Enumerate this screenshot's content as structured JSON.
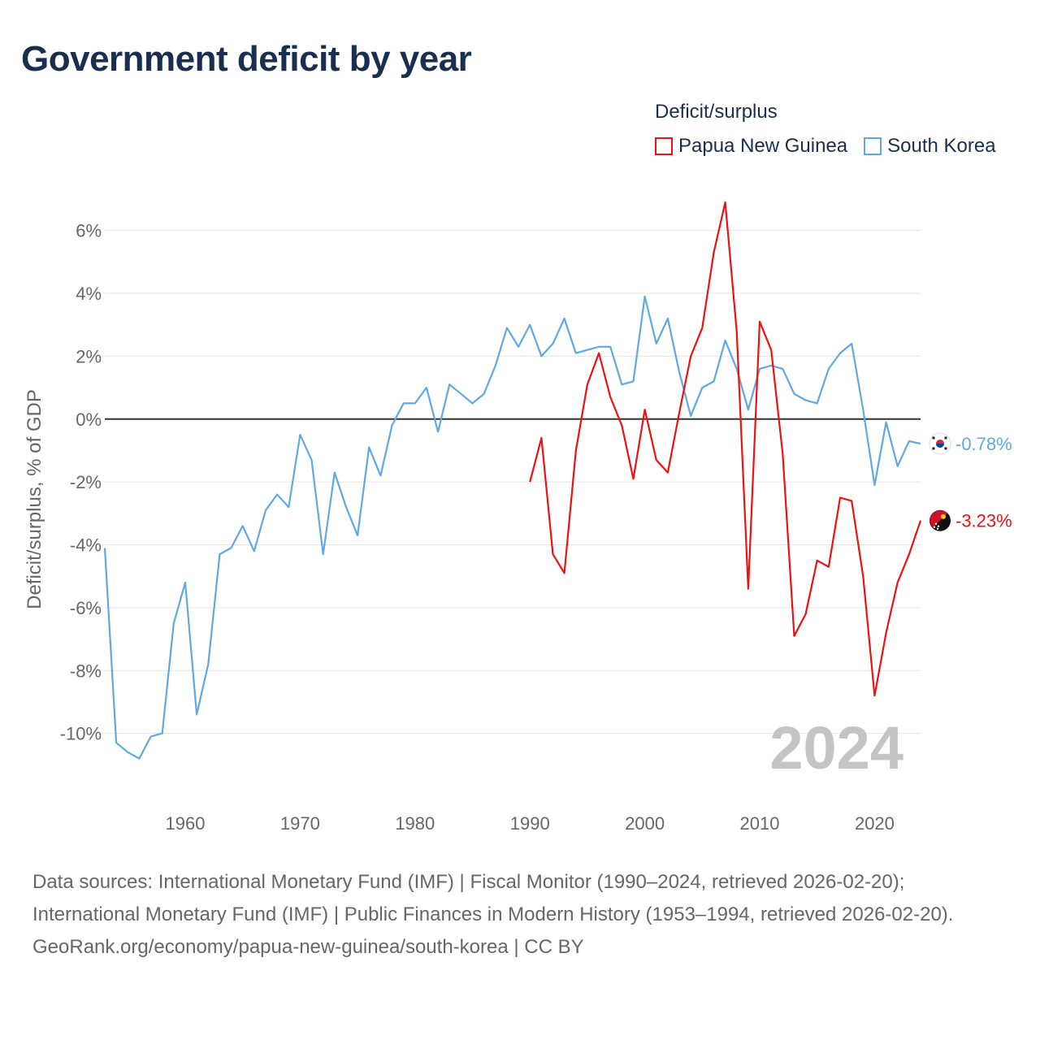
{
  "title": "Government deficit by year",
  "legend": {
    "title": "Deficit/surplus",
    "items": [
      {
        "label": "Papua New Guinea",
        "color": "#ee1111"
      },
      {
        "label": "South Korea",
        "color": "#5fa8e6"
      }
    ]
  },
  "footer": {
    "sources": "Data sources: International Monetary Fund (IMF) | Fiscal Monitor (1990–2024, retrieved 2026-02-20); International Monetary Fund (IMF) | Public Finances in Modern History (1953–1994, retrieved 2026-02-20).",
    "credit": "GeoRank.org/economy/papua-new-guinea/south-korea | CC BY"
  },
  "chart_data": {
    "type": "line",
    "ylabel": "Deficit/surplus, % of GDP",
    "xlim": [
      1953,
      2024
    ],
    "ylim": [
      -12,
      7
    ],
    "x_ticks": [
      1960,
      1970,
      1980,
      1990,
      2000,
      2010,
      2020
    ],
    "y_ticks": [
      6,
      4,
      2,
      0,
      -2,
      -4,
      -6,
      -8,
      -10
    ],
    "y_tick_labels": [
      "6%",
      "4%",
      "2%",
      "0%",
      "-2%",
      "-4%",
      "-6%",
      "-8%",
      "-10%"
    ],
    "x_tick_labels": [
      "1960",
      "1970",
      "1980",
      "1990",
      "2000",
      "2010",
      "2020"
    ],
    "year_label": "2024",
    "series": [
      {
        "name": "South Korea",
        "color": "#5fa8e6",
        "end_label": "-0.78%",
        "x": [
          1953,
          1954,
          1955,
          1956,
          1957,
          1958,
          1959,
          1960,
          1961,
          1962,
          1963,
          1964,
          1965,
          1966,
          1967,
          1968,
          1969,
          1970,
          1971,
          1972,
          1973,
          1974,
          1975,
          1976,
          1977,
          1978,
          1979,
          1980,
          1981,
          1982,
          1983,
          1984,
          1985,
          1986,
          1987,
          1988,
          1989,
          1990,
          1991,
          1992,
          1993,
          1994,
          1995,
          1996,
          1997,
          1998,
          1999,
          2000,
          2001,
          2002,
          2003,
          2004,
          2005,
          2006,
          2007,
          2008,
          2009,
          2010,
          2011,
          2012,
          2013,
          2014,
          2015,
          2016,
          2017,
          2018,
          2019,
          2020,
          2021,
          2022,
          2023,
          2024
        ],
        "values": [
          -4.1,
          -10.3,
          -10.6,
          -10.8,
          -10.1,
          -10.0,
          -6.5,
          -5.2,
          -9.4,
          -7.8,
          -4.3,
          -4.1,
          -3.4,
          -4.2,
          -2.9,
          -2.4,
          -2.8,
          -0.5,
          -1.3,
          -4.3,
          -1.7,
          -2.8,
          -3.7,
          -0.9,
          -1.8,
          -0.2,
          0.5,
          0.5,
          1.0,
          -0.4,
          1.1,
          0.8,
          0.5,
          0.8,
          1.7,
          2.9,
          2.3,
          3.0,
          2.0,
          2.4,
          3.2,
          2.1,
          2.2,
          2.3,
          2.3,
          1.1,
          1.2,
          3.9,
          2.4,
          3.2,
          1.5,
          0.1,
          1.0,
          1.2,
          2.5,
          1.6,
          0.3,
          1.6,
          1.7,
          1.6,
          0.8,
          0.6,
          0.5,
          1.6,
          2.1,
          2.4,
          0.3,
          -2.1,
          -0.1,
          -1.5,
          -0.7,
          -0.78
        ]
      },
      {
        "name": "Papua New Guinea",
        "color": "#ee1111",
        "end_label": "-3.23%",
        "x": [
          1990,
          1991,
          1992,
          1993,
          1994,
          1995,
          1996,
          1997,
          1998,
          1999,
          2000,
          2001,
          2002,
          2003,
          2004,
          2005,
          2006,
          2007,
          2008,
          2009,
          2010,
          2011,
          2012,
          2013,
          2014,
          2015,
          2016,
          2017,
          2018,
          2019,
          2020,
          2021,
          2022,
          2023,
          2024
        ],
        "values": [
          -2.0,
          -0.6,
          -4.3,
          -4.9,
          -1.0,
          1.1,
          2.1,
          0.7,
          -0.2,
          -1.9,
          0.3,
          -1.3,
          -1.7,
          0.2,
          2.0,
          2.9,
          5.3,
          6.9,
          2.8,
          -5.4,
          3.1,
          2.2,
          -1.1,
          -6.9,
          -6.2,
          -4.5,
          -4.7,
          -2.5,
          -2.6,
          -5.0,
          -8.8,
          -6.8,
          -5.2,
          -4.3,
          -3.23
        ]
      }
    ]
  }
}
